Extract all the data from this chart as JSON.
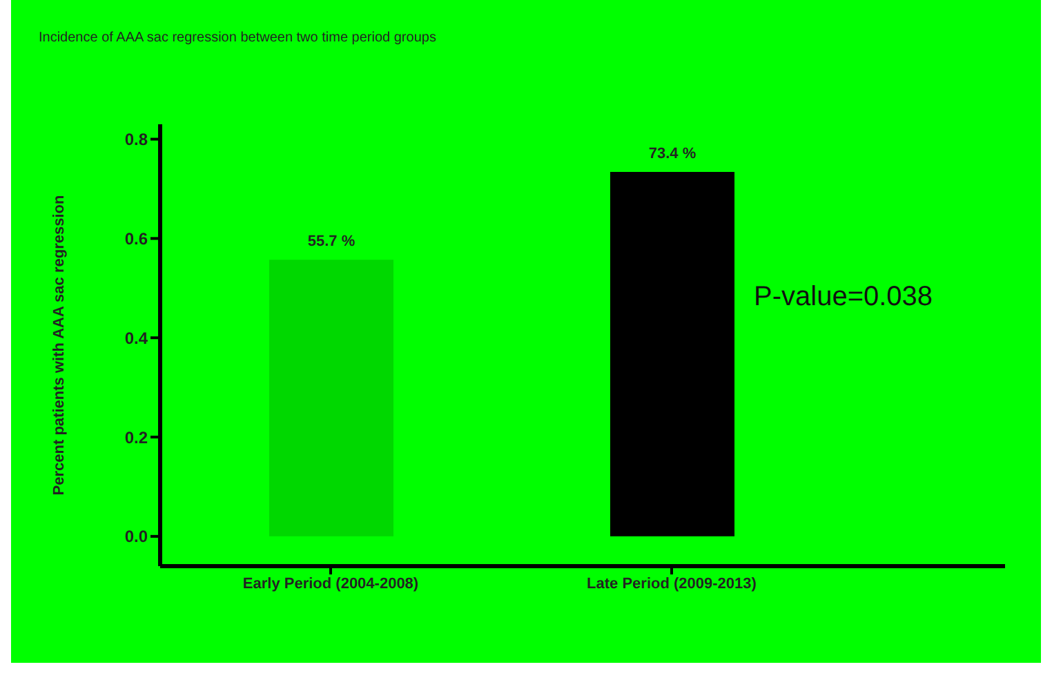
{
  "chart_data": {
    "type": "bar",
    "title": "Incidence of AAA sac regression between two time period groups",
    "ylabel": "Percent patients with AAA sac regression",
    "categories": [
      "Early Period (2004-2008)",
      "Late Period (2009-2013)"
    ],
    "values": [
      0.557,
      0.734
    ],
    "colors": [
      "#00d800",
      "#000000"
    ],
    "value_labels": [
      "55.7 %",
      "73.4 %"
    ],
    "ylim": [
      -0.06,
      0.83
    ],
    "yticks": [
      {
        "value": 0,
        "label": "0.0"
      },
      0.2,
      0.4,
      0.6,
      0.8
    ],
    "annotations": [
      "P-value=0.038"
    ],
    "grid": false,
    "legend": false
  }
}
